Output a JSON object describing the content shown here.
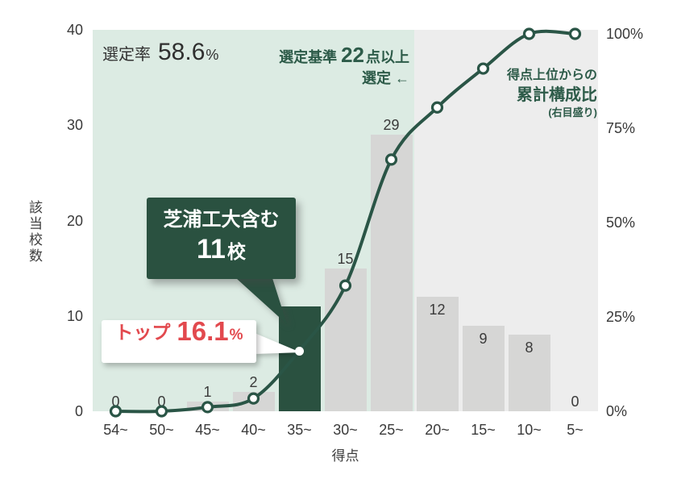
{
  "chart_data": {
    "type": "bar",
    "subtype": "pareto-combo (bars + cumulative line)",
    "categories": [
      "54~",
      "50~",
      "45~",
      "40~",
      "35~",
      "30~",
      "25~",
      "20~",
      "15~",
      "10~",
      "5~"
    ],
    "series": [
      {
        "name": "該当校数",
        "type": "bar",
        "axis": "left",
        "values": [
          0,
          0,
          1,
          2,
          11,
          15,
          29,
          12,
          9,
          8,
          0
        ]
      },
      {
        "name": "得点上位からの累計構成比",
        "type": "line",
        "axis": "right",
        "values_pct": [
          0,
          0,
          1.1,
          3.4,
          16.1,
          33.3,
          66.7,
          80.5,
          90.8,
          100,
          100
        ]
      }
    ],
    "xlabel": "得点",
    "ylabel_left": "該当校数",
    "ylim_left": [
      0,
      40
    ],
    "ylim_right_pct": [
      0,
      100
    ],
    "left_ticks": [
      "0",
      "10",
      "20",
      "30",
      "40"
    ],
    "right_ticks": [
      "0%",
      "25%",
      "50%",
      "75%",
      "100%"
    ],
    "highlight_category_index": 4,
    "shaded_selection_span_categories": 7,
    "grid": "off",
    "legend_position": "annotation inside plot (right)"
  },
  "annotations": {
    "selection_rate": {
      "label": "選定率",
      "value": "58.6",
      "unit": "%"
    },
    "criteria": {
      "label": "選定基準",
      "value": "22",
      "suffix": "点以上",
      "line2": "選定 ←"
    },
    "cumulative_legend": {
      "line1": "得点上位からの",
      "line2": "累計構成比",
      "line3": "(右目盛り)"
    },
    "green_callout": {
      "line1": "芝浦工大含む",
      "value": "11",
      "unit": "校"
    },
    "top_callout": {
      "label": "トップ",
      "value": "16.1",
      "unit": "%"
    }
  },
  "colors": {
    "selection_bg": "#dcebe3",
    "right_bg": "#ededed",
    "bar": "#d6d6d5",
    "highlight": "#2a5140",
    "line": "#2a5546",
    "green_text": "#2d5b49",
    "red_text": "#e2494e",
    "dark_text": "#333333"
  }
}
